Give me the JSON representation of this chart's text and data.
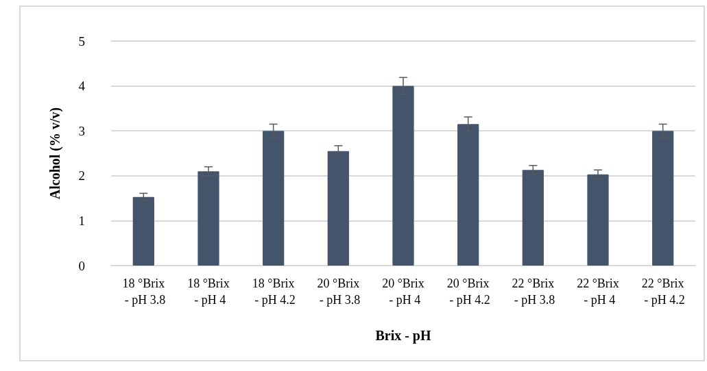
{
  "chart_data": {
    "type": "bar",
    "xlabel": "Brix - pH",
    "ylabel": "Alcohol (% v/v)",
    "categories": [
      "18 °Brix - pH 3.8",
      "18 °Brix - pH 4",
      "18 °Brix - pH 4.2",
      "20 °Brix - pH 3.8",
      "20 °Brix - pH 4",
      "20 °Brix - pH 4.2",
      "22 °Brix - pH 3.8",
      "22 °Brix - pH 4",
      "22 °Brix - pH 4.2"
    ],
    "values": [
      1.53,
      2.1,
      3.0,
      2.55,
      4.0,
      3.15,
      2.13,
      2.03,
      3.0
    ],
    "errors": [
      0.08,
      0.1,
      0.15,
      0.12,
      0.19,
      0.16,
      0.1,
      0.1,
      0.15
    ],
    "color": "#44546a",
    "ylim": [
      0,
      5
    ],
    "yticks": [
      0,
      1,
      2,
      3,
      4,
      5
    ],
    "grid": "y"
  }
}
